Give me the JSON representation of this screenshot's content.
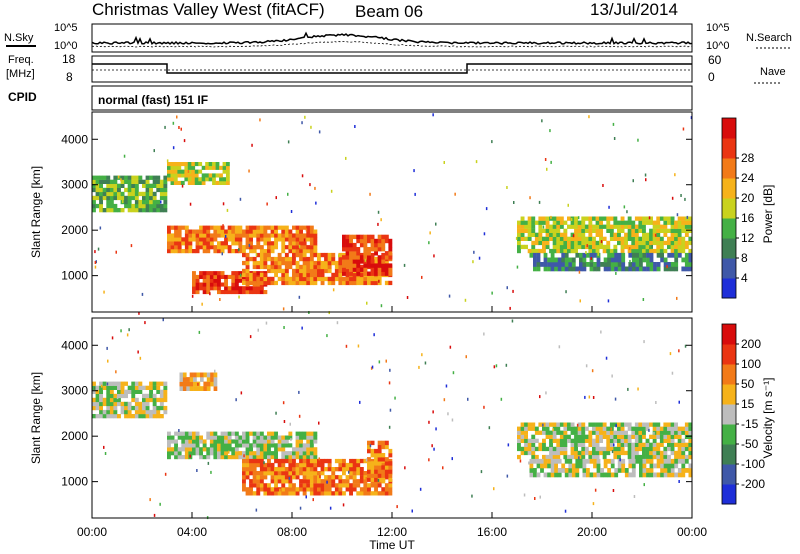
{
  "header": {
    "title": "Christmas Valley West (fitACF)",
    "beam": "Beam 06",
    "date": "13/Jul/2014"
  },
  "aux_panels": {
    "nsky_label": "N.Sky",
    "nsearch_label": "N.Search",
    "noise_left_ticks": [
      "10^5",
      "10^0"
    ],
    "noise_right_ticks": [
      "10^5",
      "10^0"
    ],
    "freq_label_line1": "Freq.",
    "freq_label_line2": "[MHz]",
    "freq_ticks": [
      "18",
      "8"
    ],
    "nave_label": "Nave",
    "nave_ticks": [
      "60",
      "0"
    ],
    "cpid_label": "CPID",
    "cpid_text": "normal (fast) 151 IF"
  },
  "chart_data": [
    {
      "type": "heatmap",
      "name": "power",
      "ylabel": "Slant Range [km]",
      "xlabel": "Time UT",
      "x_ticks": [
        "00:00",
        "04:00",
        "08:00",
        "12:00",
        "16:00",
        "20:00",
        "00:00"
      ],
      "y_ticks": [
        "1000",
        "2000",
        "3000",
        "4000"
      ],
      "ylim": [
        200,
        4600
      ],
      "colorbar_label": "Power [dB]",
      "colorbar_ticks": [
        "4",
        "8",
        "12",
        "16",
        "20",
        "24",
        "28"
      ],
      "colorbar_colors": [
        "#1e2ed8",
        "#3f58a8",
        "#3f7f54",
        "#44b045",
        "#c9d21e",
        "#f6b21a",
        "#f27a18",
        "#ea3512",
        "#d80c0c"
      ],
      "regions": [
        {
          "t": [
            0,
            3
          ],
          "r": [
            2400,
            3200
          ],
          "level": 3
        },
        {
          "t": [
            3,
            5.5
          ],
          "r": [
            3000,
            3500
          ],
          "level": 4
        },
        {
          "t": [
            3,
            9
          ],
          "r": [
            1500,
            2100
          ],
          "level": 6
        },
        {
          "t": [
            4,
            7
          ],
          "r": [
            600,
            1100
          ],
          "level": 7
        },
        {
          "t": [
            6,
            12
          ],
          "r": [
            800,
            1500
          ],
          "level": 6
        },
        {
          "t": [
            10,
            12
          ],
          "r": [
            1000,
            1900
          ],
          "level": 7
        },
        {
          "t": [
            17,
            24
          ],
          "r": [
            1500,
            2300
          ],
          "level": 4
        },
        {
          "t": [
            17.5,
            24
          ],
          "r": [
            1100,
            1500
          ],
          "level": 2
        }
      ]
    },
    {
      "type": "heatmap",
      "name": "velocity",
      "ylabel": "Slant Range [km]",
      "xlabel": "Time UT",
      "x_ticks": [
        "00:00",
        "04:00",
        "08:00",
        "12:00",
        "16:00",
        "20:00",
        "00:00"
      ],
      "y_ticks": [
        "1000",
        "2000",
        "3000",
        "4000"
      ],
      "ylim": [
        200,
        4600
      ],
      "colorbar_label": "Velocity [m s⁻¹]",
      "colorbar_ticks": [
        "200",
        "100",
        "50",
        "15",
        "-15",
        "-50",
        "-100",
        "-200"
      ],
      "colorbar_colors": [
        "#1e2ed8",
        "#3f58a8",
        "#3f7f54",
        "#44b045",
        "#bdbdbd",
        "#f6b21a",
        "#f27a18",
        "#ea3512",
        "#d80c0c"
      ],
      "regions": [
        {
          "t": [
            0,
            3
          ],
          "r": [
            2400,
            3200
          ],
          "level": 4
        },
        {
          "t": [
            3,
            9
          ],
          "r": [
            1500,
            2100
          ],
          "level": 4
        },
        {
          "t": [
            3.5,
            5
          ],
          "r": [
            3000,
            3400
          ],
          "level": 5
        },
        {
          "t": [
            6,
            12
          ],
          "r": [
            700,
            1500
          ],
          "level": 6
        },
        {
          "t": [
            11,
            12
          ],
          "r": [
            1000,
            1900
          ],
          "level": 6
        },
        {
          "t": [
            17,
            24
          ],
          "r": [
            1500,
            2300
          ],
          "level": 4
        },
        {
          "t": [
            17.5,
            24
          ],
          "r": [
            1100,
            1500
          ],
          "level": 4
        }
      ]
    }
  ]
}
